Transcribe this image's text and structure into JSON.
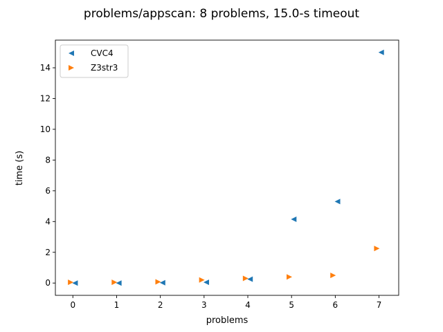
{
  "chart_data": {
    "type": "scatter",
    "title": "problems/appscan: 8 problems, 15.0-s timeout",
    "xlabel": "problems",
    "ylabel": "time (s)",
    "xlim": [
      -0.4,
      7.45
    ],
    "ylim": [
      -0.8,
      15.8
    ],
    "xticks": [
      0,
      1,
      2,
      3,
      4,
      5,
      6,
      7
    ],
    "yticks": [
      0,
      2,
      4,
      6,
      8,
      10,
      12,
      14
    ],
    "grid": false,
    "legend_position": "upper-left",
    "series": [
      {
        "name": "CVC4",
        "marker": "triangle-left",
        "color": "#1f77b4",
        "offset": 0.05,
        "x": [
          0,
          1,
          2,
          3,
          4,
          5,
          6,
          7
        ],
        "y": [
          0.0,
          0.0,
          0.02,
          0.05,
          0.25,
          4.15,
          5.3,
          15.0
        ]
      },
      {
        "name": "Z3str3",
        "marker": "triangle-right",
        "color": "#ff7f0e",
        "offset": -0.05,
        "x": [
          0,
          1,
          2,
          3,
          4,
          5,
          6,
          7
        ],
        "y": [
          0.05,
          0.05,
          0.08,
          0.2,
          0.3,
          0.4,
          0.5,
          2.25
        ]
      }
    ]
  }
}
